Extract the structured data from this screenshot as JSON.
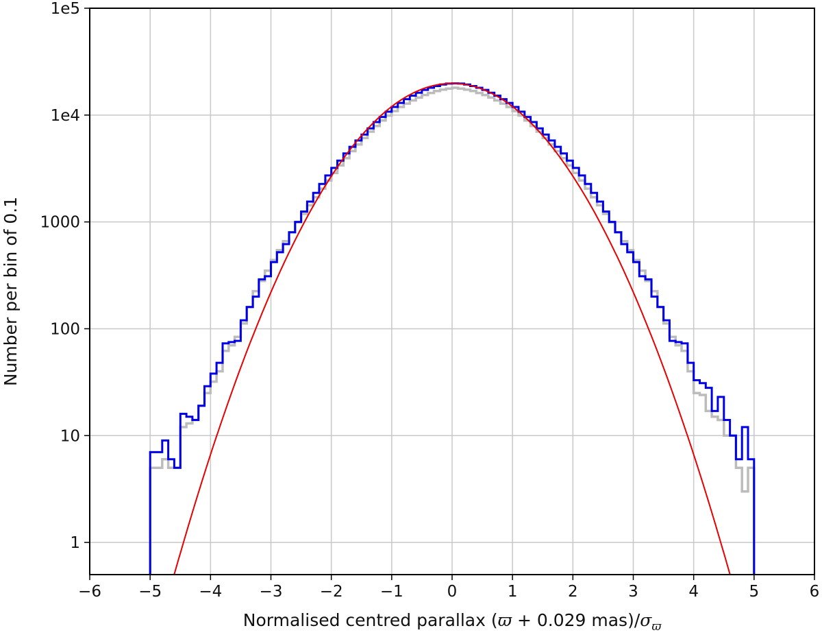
{
  "chart_data": {
    "type": "histogram",
    "title": "",
    "xlabel_text": "Normalised centred parallax (",
    "xlabel_symbol": "ϖ",
    "xlabel_mid": " + 0.029 mas)/",
    "xlabel_sigma": "σ",
    "xlabel_sub": "ϖ",
    "ylabel": "Number per bin of 0.1",
    "xlim": [
      -6,
      6
    ],
    "ylim": [
      0.5,
      100000
    ],
    "yscale": "log",
    "grid": true,
    "x_ticks": [
      -6,
      -5,
      -4,
      -3,
      -2,
      -1,
      0,
      1,
      2,
      3,
      4,
      5,
      6
    ],
    "x_tick_labels": [
      "−6",
      "−5",
      "−4",
      "−3",
      "−2",
      "−1",
      "0",
      "1",
      "2",
      "3",
      "4",
      "5",
      "6"
    ],
    "y_ticks": [
      1,
      10,
      100,
      1000,
      10000,
      100000
    ],
    "y_tick_labels": [
      "1",
      "10",
      "100",
      "1000",
      "1e4",
      "1e5"
    ],
    "bin_width": 0.1,
    "x_range": [
      -5,
      5
    ],
    "series": [
      {
        "name": "",
        "kind": "step",
        "color": "#bcbcbc",
        "values": [
          5,
          5,
          6,
          5,
          5,
          12,
          13,
          14,
          19,
          25,
          32,
          40,
          62,
          70,
          84,
          112,
          160,
          225,
          280,
          350,
          440,
          545,
          660,
          800,
          990,
          1190,
          1430,
          1700,
          2050,
          2440,
          2870,
          3380,
          3950,
          4600,
          5300,
          6100,
          7000,
          7900,
          8900,
          9900,
          10900,
          11900,
          12800,
          13700,
          14600,
          15400,
          16100,
          16800,
          17300,
          17700,
          18000,
          17700,
          17300,
          16800,
          16100,
          15400,
          14600,
          13700,
          12800,
          11900,
          10900,
          9900,
          8900,
          7900,
          7000,
          6100,
          5300,
          4600,
          3950,
          3380,
          2870,
          2440,
          2050,
          1700,
          1430,
          1190,
          990,
          800,
          660,
          545,
          440,
          350,
          280,
          225,
          160,
          112,
          84,
          70,
          62,
          40,
          25,
          24,
          17,
          15,
          14,
          10,
          10,
          5,
          3,
          5
        ]
      },
      {
        "name": "",
        "kind": "step",
        "color": "#0000e6",
        "values": [
          7,
          7,
          9,
          6,
          5,
          16,
          15,
          14,
          19,
          29,
          38,
          48,
          73,
          75,
          77,
          120,
          160,
          200,
          290,
          310,
          420,
          520,
          620,
          800,
          1000,
          1250,
          1550,
          1870,
          2270,
          2720,
          3200,
          3750,
          4380,
          5050,
          5780,
          6560,
          7500,
          8600,
          9600,
          10750,
          11900,
          13000,
          14100,
          15200,
          16200,
          17200,
          18000,
          18700,
          19300,
          19700,
          19800,
          19700,
          19300,
          18700,
          18000,
          17200,
          16200,
          15200,
          14100,
          13000,
          11900,
          10750,
          9600,
          8600,
          7500,
          6560,
          5780,
          5050,
          4380,
          3750,
          3200,
          2720,
          2270,
          1870,
          1550,
          1250,
          1000,
          800,
          620,
          520,
          420,
          310,
          290,
          200,
          160,
          120,
          77,
          75,
          73,
          48,
          33,
          31,
          28,
          17,
          23,
          14,
          10,
          6,
          12,
          6
        ]
      },
      {
        "name": "",
        "kind": "line",
        "color": "#e60000",
        "function": "gaussian",
        "amplitude": 19800,
        "sigma": 1.0
      }
    ]
  }
}
